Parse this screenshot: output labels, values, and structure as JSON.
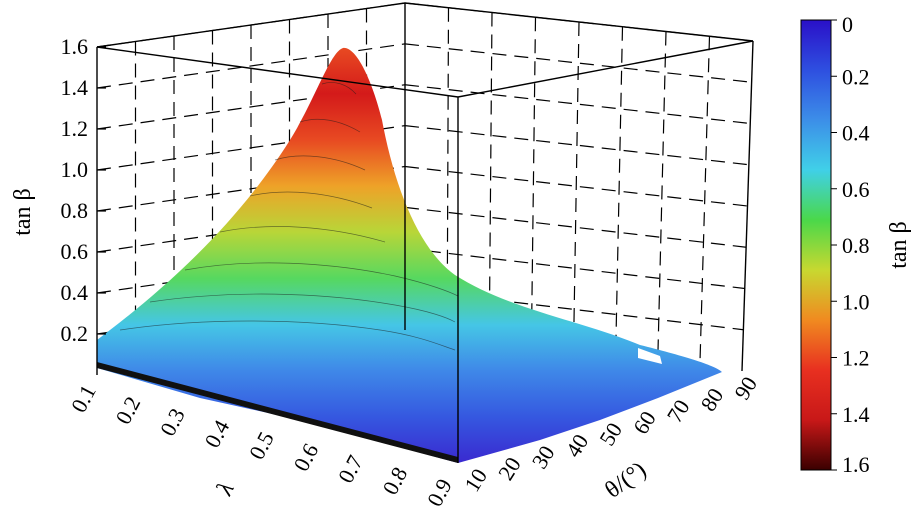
{
  "chart_data": {
    "type": "surface",
    "zlabel": "tan β",
    "xlabel": "λ",
    "ylabel": "θ/(°)",
    "colorbar_label": "tan β",
    "x_ticks": [
      "0.1",
      "0.2",
      "0.3",
      "0.4",
      "0.5",
      "0.6",
      "0.7",
      "0.8",
      "0.9"
    ],
    "y_ticks": [
      "10",
      "20",
      "30",
      "40",
      "50",
      "60",
      "70",
      "80",
      "90"
    ],
    "z_ticks": [
      "0.2",
      "0.4",
      "0.6",
      "0.8",
      "1.0",
      "1.2",
      "1.4",
      "1.6"
    ],
    "colorbar_ticks": [
      "0",
      "0.2",
      "0.4",
      "0.6",
      "0.8",
      "1.0",
      "1.2",
      "1.4",
      "1.6"
    ],
    "xlim": [
      0.1,
      0.9
    ],
    "ylim": [
      10,
      90
    ],
    "zlim": [
      0,
      1.6
    ],
    "colorbar_range": [
      0,
      1.6
    ],
    "colormap": [
      "#2a10c8",
      "#2e4fe0",
      "#3c8ee8",
      "#40d0e8",
      "#4ad84a",
      "#c8d830",
      "#f08a20",
      "#e83020",
      "#c81818",
      "#3a0000"
    ],
    "peak": {
      "lambda": 0.1,
      "theta": 10,
      "tan_beta": 1.57
    },
    "samples": [
      {
        "lambda": 0.1,
        "theta": 10,
        "tan_beta": 1.57
      },
      {
        "lambda": 0.1,
        "theta": 50,
        "tan_beta": 0.08
      },
      {
        "lambda": 0.1,
        "theta": 90,
        "tan_beta": 0.02
      },
      {
        "lambda": 0.9,
        "theta": 10,
        "tan_beta": 0.05
      },
      {
        "lambda": 0.9,
        "theta": 90,
        "tan_beta": 0.0
      }
    ],
    "grid": true
  }
}
